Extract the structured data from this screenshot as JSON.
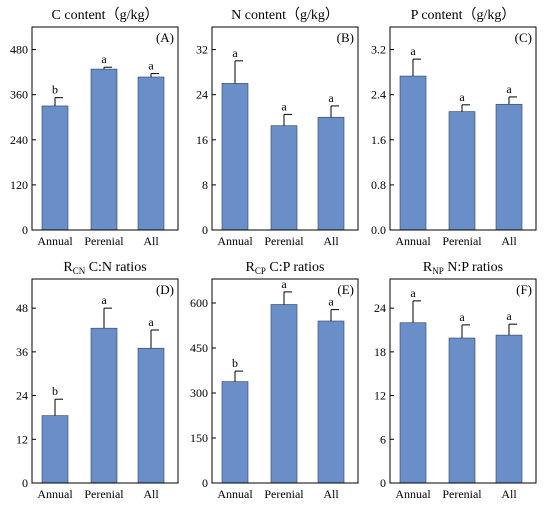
{
  "chart_data": [
    {
      "type": "bar",
      "panel": "(A)",
      "title": "C content（g/kg）",
      "categories": [
        "Annual",
        "Perenial",
        "All"
      ],
      "values": [
        330,
        428,
        407
      ],
      "errors": [
        22,
        5,
        9
      ],
      "significance": [
        "b",
        "a",
        "a"
      ],
      "yticks": [
        "0",
        "120",
        "240",
        "360",
        "480"
      ],
      "ylim": [
        0,
        540
      ],
      "xlabel": "",
      "ylabel": ""
    },
    {
      "type": "bar",
      "panel": "(B)",
      "title": "N content（g/kg）",
      "categories": [
        "Annual",
        "Perenial",
        "All"
      ],
      "values": [
        26,
        18.5,
        20
      ],
      "errors": [
        4,
        2,
        2
      ],
      "significance": [
        "a",
        "a",
        "a"
      ],
      "yticks": [
        "0",
        "8",
        "16",
        "24",
        "32"
      ],
      "ylim": [
        0,
        36
      ],
      "xlabel": "",
      "ylabel": ""
    },
    {
      "type": "bar",
      "panel": "(C)",
      "title": "P content（g/kg）",
      "categories": [
        "Annual",
        "Perenial",
        "All"
      ],
      "values": [
        2.73,
        2.1,
        2.23
      ],
      "errors": [
        0.3,
        0.12,
        0.13
      ],
      "significance": [
        "a",
        "a",
        "a"
      ],
      "yticks": [
        "0.0",
        "0.8",
        "1.6",
        "2.4",
        "3.2"
      ],
      "ylim": [
        0,
        3.6
      ],
      "xlabel": "",
      "ylabel": ""
    },
    {
      "type": "bar",
      "panel": "(D)",
      "title": "R",
      "title_sub": "CN",
      "title_rest": " C:N ratios",
      "categories": [
        "Annual",
        "Perenial",
        "All"
      ],
      "values": [
        18.5,
        42.5,
        37
      ],
      "errors": [
        4.5,
        5.5,
        5
      ],
      "significance": [
        "b",
        "a",
        "a"
      ],
      "yticks": [
        "0",
        "12",
        "24",
        "36",
        "48"
      ],
      "ylim": [
        0,
        56
      ],
      "xlabel": "",
      "ylabel": ""
    },
    {
      "type": "bar",
      "panel": "(E)",
      "title": "R",
      "title_sub": "CP",
      "title_rest": " C:P ratios",
      "categories": [
        "Annual",
        "Perenial",
        "All"
      ],
      "values": [
        338,
        595,
        540
      ],
      "errors": [
        35,
        42,
        38
      ],
      "significance": [
        "b",
        "a",
        "a"
      ],
      "yticks": [
        "0",
        "150",
        "300",
        "450",
        "600"
      ],
      "ylim": [
        0,
        680
      ],
      "xlabel": "",
      "ylabel": ""
    },
    {
      "type": "bar",
      "panel": "(F)",
      "title": "R",
      "title_sub": "NP",
      "title_rest": " N:P ratios",
      "categories": [
        "Annual",
        "Perenial",
        "All"
      ],
      "values": [
        22,
        19.9,
        20.3
      ],
      "errors": [
        3,
        1.8,
        1.5
      ],
      "significance": [
        "a",
        "a",
        "a"
      ],
      "yticks": [
        "0",
        "6",
        "12",
        "18",
        "24"
      ],
      "ylim": [
        0,
        28
      ],
      "xlabel": "",
      "ylabel": ""
    }
  ],
  "colors": {
    "bar_fill": "#6a8ec8",
    "bar_stroke": "#2e3f5e",
    "axis": "#000000"
  }
}
